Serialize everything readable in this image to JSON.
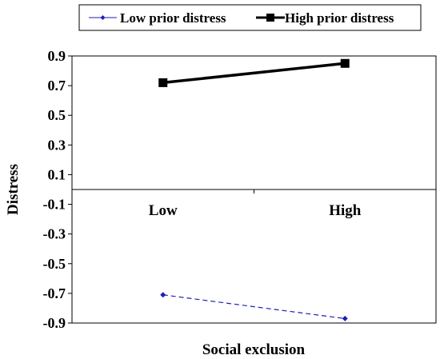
{
  "chart_data": {
    "type": "line",
    "categories": [
      "Low",
      "High"
    ],
    "series": [
      {
        "name": "Low prior distress",
        "values": [
          -0.71,
          -0.87
        ],
        "color": "#1f1fb4",
        "style": "dashed",
        "marker": "diamond"
      },
      {
        "name": "High prior distress",
        "values": [
          0.72,
          0.85
        ],
        "color": "#000000",
        "style": "solid",
        "marker": "square"
      }
    ],
    "xlabel": "Social exclusion",
    "ylabel": "Distress",
    "ylim": [
      -0.9,
      0.9
    ],
    "yticks": [
      "0.9",
      "0.7",
      "0.5",
      "0.3",
      "0.1",
      "-0.1",
      "-0.3",
      "-0.5",
      "-0.7",
      "-0.9"
    ],
    "grid": false,
    "legend_position": "top"
  }
}
